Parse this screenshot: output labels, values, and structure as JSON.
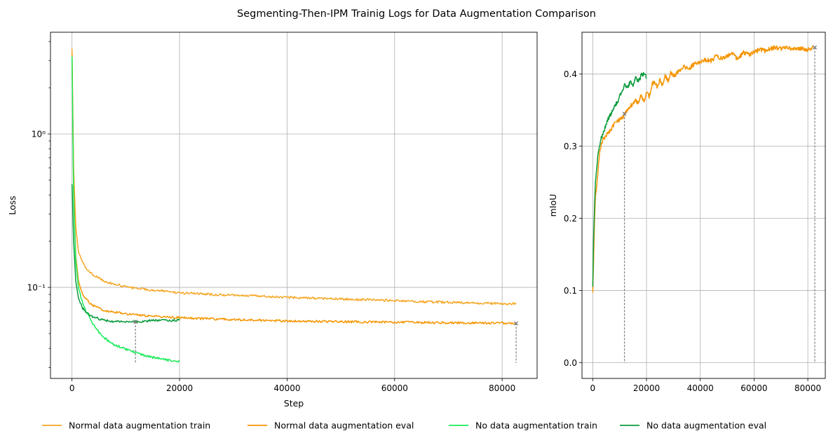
{
  "figure": {
    "title": "Segmenting-Then-IPM Trainig Logs for Data Augmentation Comparison"
  },
  "legend": {
    "placement": "bottom-center",
    "items": [
      {
        "label": "Normal data augmentation train",
        "color": "#f5a623"
      },
      {
        "label": "Normal data augmentation eval",
        "color": "#f59500"
      },
      {
        "label": "No data augmentation train",
        "color": "#1aeb5a"
      },
      {
        "label": "No data augmentation eval",
        "color": "#0a9b3c"
      }
    ]
  },
  "chart_data": [
    {
      "type": "line",
      "xlabel": "Step",
      "ylabel": "Loss",
      "yscale": "log",
      "xlim": [
        -4000,
        86500
      ],
      "ylim": [
        0.0255,
        4.6
      ],
      "xticks": [
        0,
        20000,
        40000,
        60000,
        80000
      ],
      "xtick_labels": [
        "0",
        "20000",
        "40000",
        "60000",
        "80000"
      ],
      "yticks": [
        0.1,
        1
      ],
      "ytick_labels": [
        "10⁻¹",
        "10⁰"
      ],
      "grid": true,
      "markers": [
        {
          "x": 11800,
          "y": 0.0597
        },
        {
          "x": 82600,
          "y": 0.0583
        }
      ],
      "series": [
        {
          "name": "Normal data augmentation train",
          "color": "#f5a623",
          "x": [
            0,
            300,
            700,
            1200,
            2000,
            3000,
            4000,
            5000,
            6000,
            7000,
            8000,
            10000,
            12000,
            15000,
            18000,
            20000,
            23000,
            26000,
            30000,
            35000,
            40000,
            45000,
            50000,
            55000,
            60000,
            65000,
            70000,
            75000,
            80000,
            82600
          ],
          "y": [
            3.6,
            0.6,
            0.25,
            0.17,
            0.145,
            0.128,
            0.12,
            0.115,
            0.11,
            0.107,
            0.105,
            0.101,
            0.098,
            0.096,
            0.094,
            0.092,
            0.091,
            0.09,
            0.089,
            0.088,
            0.086,
            0.085,
            0.084,
            0.083,
            0.082,
            0.0805,
            0.08,
            0.079,
            0.0785,
            0.078
          ]
        },
        {
          "name": "Normal data augmentation eval",
          "color": "#f59500",
          "x": [
            0,
            300,
            700,
            1200,
            2000,
            3000,
            4000,
            5000,
            6000,
            8000,
            10000,
            12000,
            15000,
            18000,
            20000,
            25000,
            30000,
            35000,
            40000,
            45000,
            50000,
            55000,
            60000,
            65000,
            70000,
            75000,
            80000,
            82600
          ],
          "y": [
            3.3,
            0.45,
            0.16,
            0.11,
            0.09,
            0.081,
            0.076,
            0.073,
            0.071,
            0.069,
            0.067,
            0.066,
            0.065,
            0.064,
            0.0635,
            0.0625,
            0.0615,
            0.061,
            0.0605,
            0.06,
            0.0598,
            0.0595,
            0.0593,
            0.059,
            0.0588,
            0.0586,
            0.0585,
            0.0583
          ]
        },
        {
          "name": "No data augmentation train",
          "color": "#1aeb5a",
          "x": [
            0,
            300,
            700,
            1200,
            2000,
            3000,
            4000,
            5000,
            6000,
            7000,
            8000,
            9000,
            10000,
            11000,
            12000,
            13000,
            14000,
            15000,
            16000,
            17000,
            18000,
            19000,
            20000
          ],
          "y": [
            3.2,
            0.4,
            0.15,
            0.1,
            0.078,
            0.066,
            0.057,
            0.051,
            0.047,
            0.044,
            0.042,
            0.041,
            0.0395,
            0.0385,
            0.0375,
            0.0365,
            0.0355,
            0.035,
            0.0345,
            0.034,
            0.0335,
            0.0332,
            0.033
          ]
        },
        {
          "name": "No data augmentation eval",
          "color": "#0a9b3c",
          "x": [
            0,
            300,
            700,
            1200,
            2000,
            3000,
            4000,
            5000,
            6000,
            7000,
            8000,
            9000,
            10000,
            11000,
            12000,
            13000,
            14000,
            15000,
            16000,
            17000,
            18000,
            19000,
            20000
          ],
          "y": [
            0.47,
            0.2,
            0.11,
            0.085,
            0.073,
            0.067,
            0.064,
            0.0625,
            0.061,
            0.0605,
            0.06,
            0.0598,
            0.06,
            0.0602,
            0.0597,
            0.06,
            0.0605,
            0.061,
            0.0612,
            0.061,
            0.0608,
            0.0612,
            0.061
          ]
        }
      ]
    },
    {
      "type": "line",
      "xlabel": "",
      "ylabel": "mIoU",
      "yscale": "linear",
      "xlim": [
        -4000,
        86500
      ],
      "ylim": [
        -0.022,
        0.458
      ],
      "xticks": [
        0,
        20000,
        40000,
        60000,
        80000
      ],
      "xtick_labels": [
        "0",
        "20000",
        "40000",
        "60000",
        "80000"
      ],
      "yticks": [
        0.0,
        0.1,
        0.2,
        0.3,
        0.4
      ],
      "ytick_labels": [
        "0.0",
        "0.1",
        "0.2",
        "0.3",
        "0.4"
      ],
      "grid": true,
      "markers": [
        {
          "x": 11800,
          "y": 0.345
        },
        {
          "x": 82600,
          "y": 0.437
        }
      ],
      "series": [
        {
          "name": "Normal data augmentation eval",
          "color": "#f59500",
          "x": [
            0,
            300,
            700,
            1000,
            1500,
            2000,
            2500,
            3000,
            4000,
            5000,
            6000,
            7000,
            8000,
            9000,
            10000,
            11000,
            12000,
            13000,
            14000,
            15000,
            16000,
            17000,
            18000,
            19000,
            20000,
            21000,
            22000,
            23000,
            24000,
            25000,
            26000,
            27000,
            28000,
            29000,
            30000,
            32000,
            34000,
            36000,
            38000,
            40000,
            42000,
            44000,
            46000,
            48000,
            50000,
            52000,
            54000,
            56000,
            58000,
            60000,
            62000,
            64000,
            66000,
            68000,
            70000,
            72000,
            74000,
            76000,
            78000,
            80000,
            82000
          ],
          "y": [
            0.097,
            0.14,
            0.2,
            0.23,
            0.245,
            0.27,
            0.29,
            0.3,
            0.31,
            0.315,
            0.32,
            0.325,
            0.33,
            0.333,
            0.337,
            0.34,
            0.345,
            0.35,
            0.355,
            0.36,
            0.365,
            0.358,
            0.372,
            0.362,
            0.375,
            0.368,
            0.385,
            0.39,
            0.382,
            0.392,
            0.385,
            0.398,
            0.39,
            0.402,
            0.397,
            0.404,
            0.41,
            0.408,
            0.415,
            0.417,
            0.42,
            0.418,
            0.425,
            0.422,
            0.425,
            0.428,
            0.42,
            0.43,
            0.427,
            0.43,
            0.434,
            0.432,
            0.435,
            0.437,
            0.435,
            0.438,
            0.434,
            0.436,
            0.435,
            0.434,
            0.437
          ]
        },
        {
          "name": "No data augmentation eval",
          "color": "#0a9b3c",
          "x": [
            0,
            300,
            700,
            1000,
            1500,
            2000,
            3000,
            4000,
            5000,
            6000,
            7000,
            8000,
            9000,
            10000,
            11000,
            12000,
            13000,
            14000,
            15000,
            16000,
            17000,
            18000,
            19000,
            20000
          ],
          "y": [
            0.105,
            0.17,
            0.22,
            0.25,
            0.27,
            0.29,
            0.31,
            0.32,
            0.33,
            0.34,
            0.345,
            0.355,
            0.36,
            0.37,
            0.378,
            0.385,
            0.382,
            0.39,
            0.385,
            0.395,
            0.39,
            0.398,
            0.4,
            0.395
          ]
        }
      ]
    }
  ]
}
